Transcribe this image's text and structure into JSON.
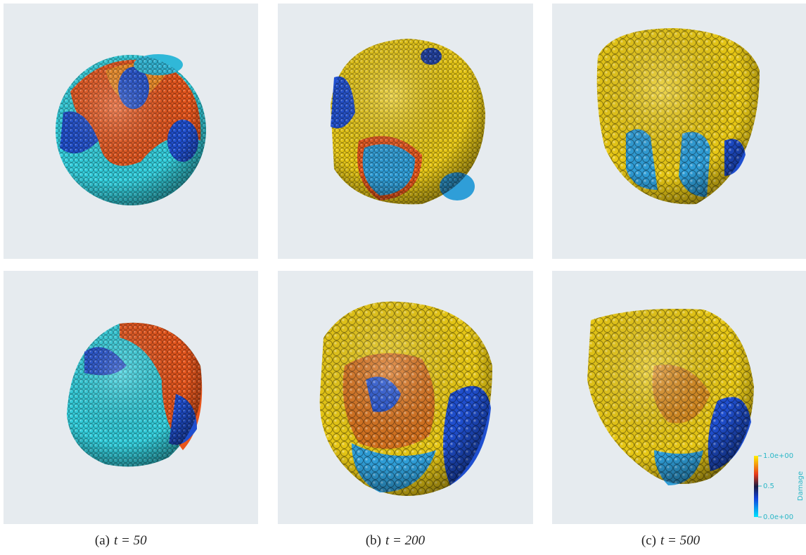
{
  "captions": [
    {
      "label": "(a)",
      "math": "t = 50"
    },
    {
      "label": "(b)",
      "math": "t = 200"
    },
    {
      "label": "(c)",
      "math": "t = 500"
    }
  ],
  "colorbar": {
    "title": "Damage",
    "ticks": [
      "1.0e+00",
      "0.5",
      "0.0e+00"
    ]
  }
}
